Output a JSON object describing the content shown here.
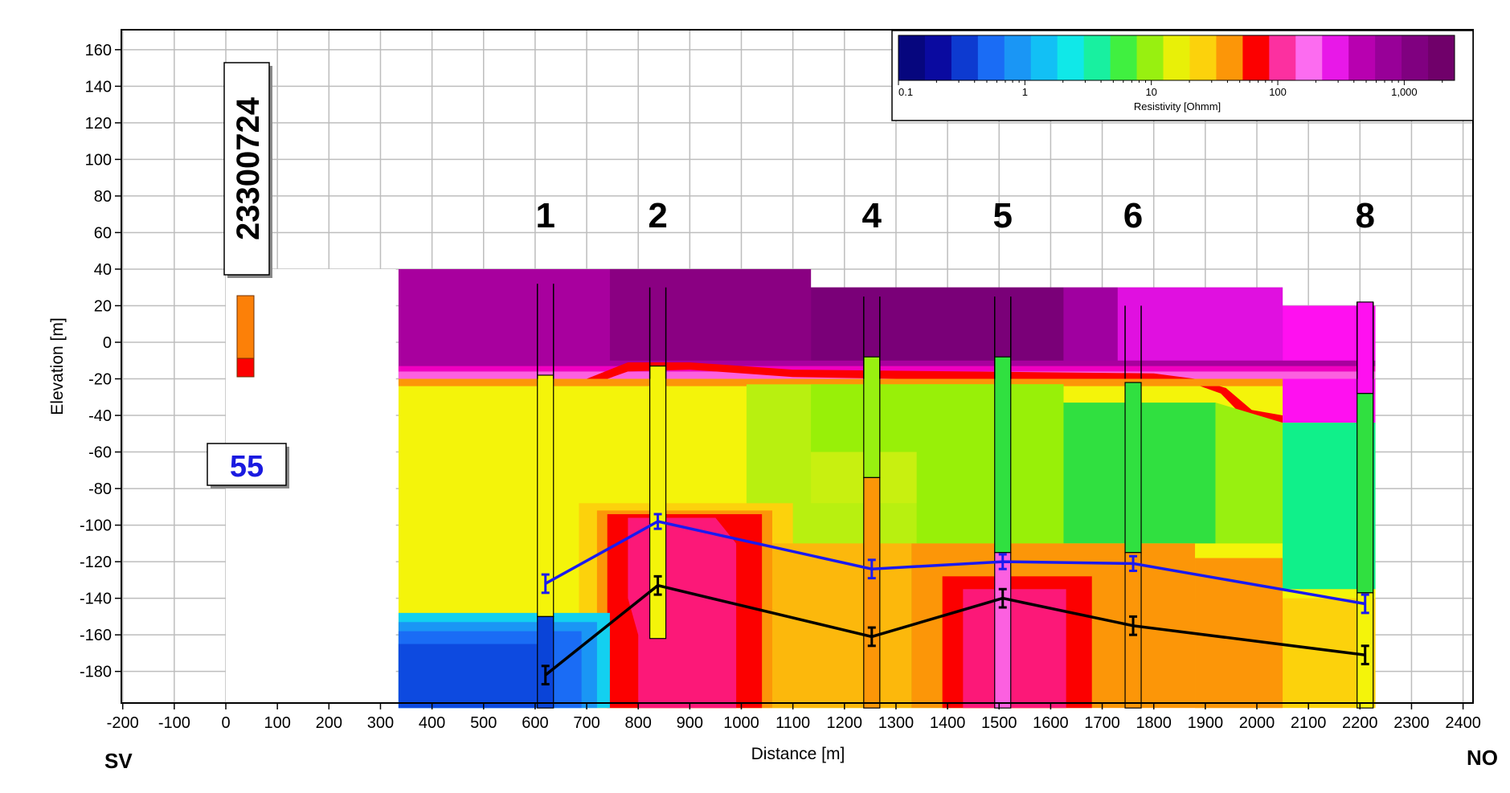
{
  "chart_data": {
    "type": "heatmap",
    "xlabel": "Distance [m]",
    "ylabel": "Elevation [m]",
    "xlim": [
      -200,
      2400
    ],
    "ylim": [
      -200,
      160
    ],
    "x_ticks": [
      -200,
      -100,
      0,
      100,
      200,
      300,
      400,
      500,
      600,
      700,
      800,
      900,
      1000,
      1100,
      1200,
      1300,
      1400,
      1500,
      1600,
      1700,
      1800,
      1900,
      2000,
      2100,
      2200,
      2300,
      2400
    ],
    "y_ticks": [
      160,
      140,
      120,
      100,
      80,
      60,
      40,
      20,
      0,
      -20,
      -40,
      -60,
      -80,
      -100,
      -120,
      -140,
      -160,
      -180
    ],
    "grid": true,
    "direction_left": "SV",
    "direction_right": "NO",
    "station_label": "23300724",
    "station_value": "55",
    "colorbar": {
      "title": "Resistivity [Ohmm]",
      "scale": "log",
      "tick_labels": [
        "0.1",
        "1",
        "10",
        "100",
        "1,000"
      ],
      "tick_values": [
        0.1,
        1,
        10,
        100,
        1000
      ],
      "range": [
        0.1,
        2500
      ],
      "colors": [
        "#06067e",
        "#0a0aa0",
        "#0d3ad0",
        "#1a6cf5",
        "#1a96f5",
        "#12c0f5",
        "#10e8e8",
        "#18f0a0",
        "#40f040",
        "#98f010",
        "#e8f008",
        "#fcd20c",
        "#fc9608",
        "#fc0000",
        "#fc30a0",
        "#fc6cf0",
        "#e818e8",
        "#b800b0",
        "#980098",
        "#800080",
        "#70006a"
      ]
    },
    "wells": [
      {
        "label": "1",
        "x": 620
      },
      {
        "label": "2",
        "x": 838
      },
      {
        "label": "4",
        "x": 1253
      },
      {
        "label": "5",
        "x": 1507
      },
      {
        "label": "6",
        "x": 1760
      },
      {
        "label": "8",
        "x": 2210
      }
    ],
    "series": [
      {
        "color": "#1a1af0",
        "points": [
          [
            620,
            -132
          ],
          [
            838,
            -98
          ],
          [
            1253,
            -124
          ],
          [
            1507,
            -120
          ],
          [
            1760,
            -121
          ],
          [
            2210,
            -143
          ]
        ],
        "errors": [
          5,
          4,
          5,
          4,
          4,
          5
        ]
      },
      {
        "color": "#000000",
        "points": [
          [
            620,
            -182
          ],
          [
            838,
            -133
          ],
          [
            1253,
            -161
          ],
          [
            1507,
            -140
          ],
          [
            1760,
            -155
          ],
          [
            2210,
            -171
          ]
        ],
        "errors": [
          5,
          5,
          5,
          5,
          5,
          5
        ]
      }
    ]
  }
}
